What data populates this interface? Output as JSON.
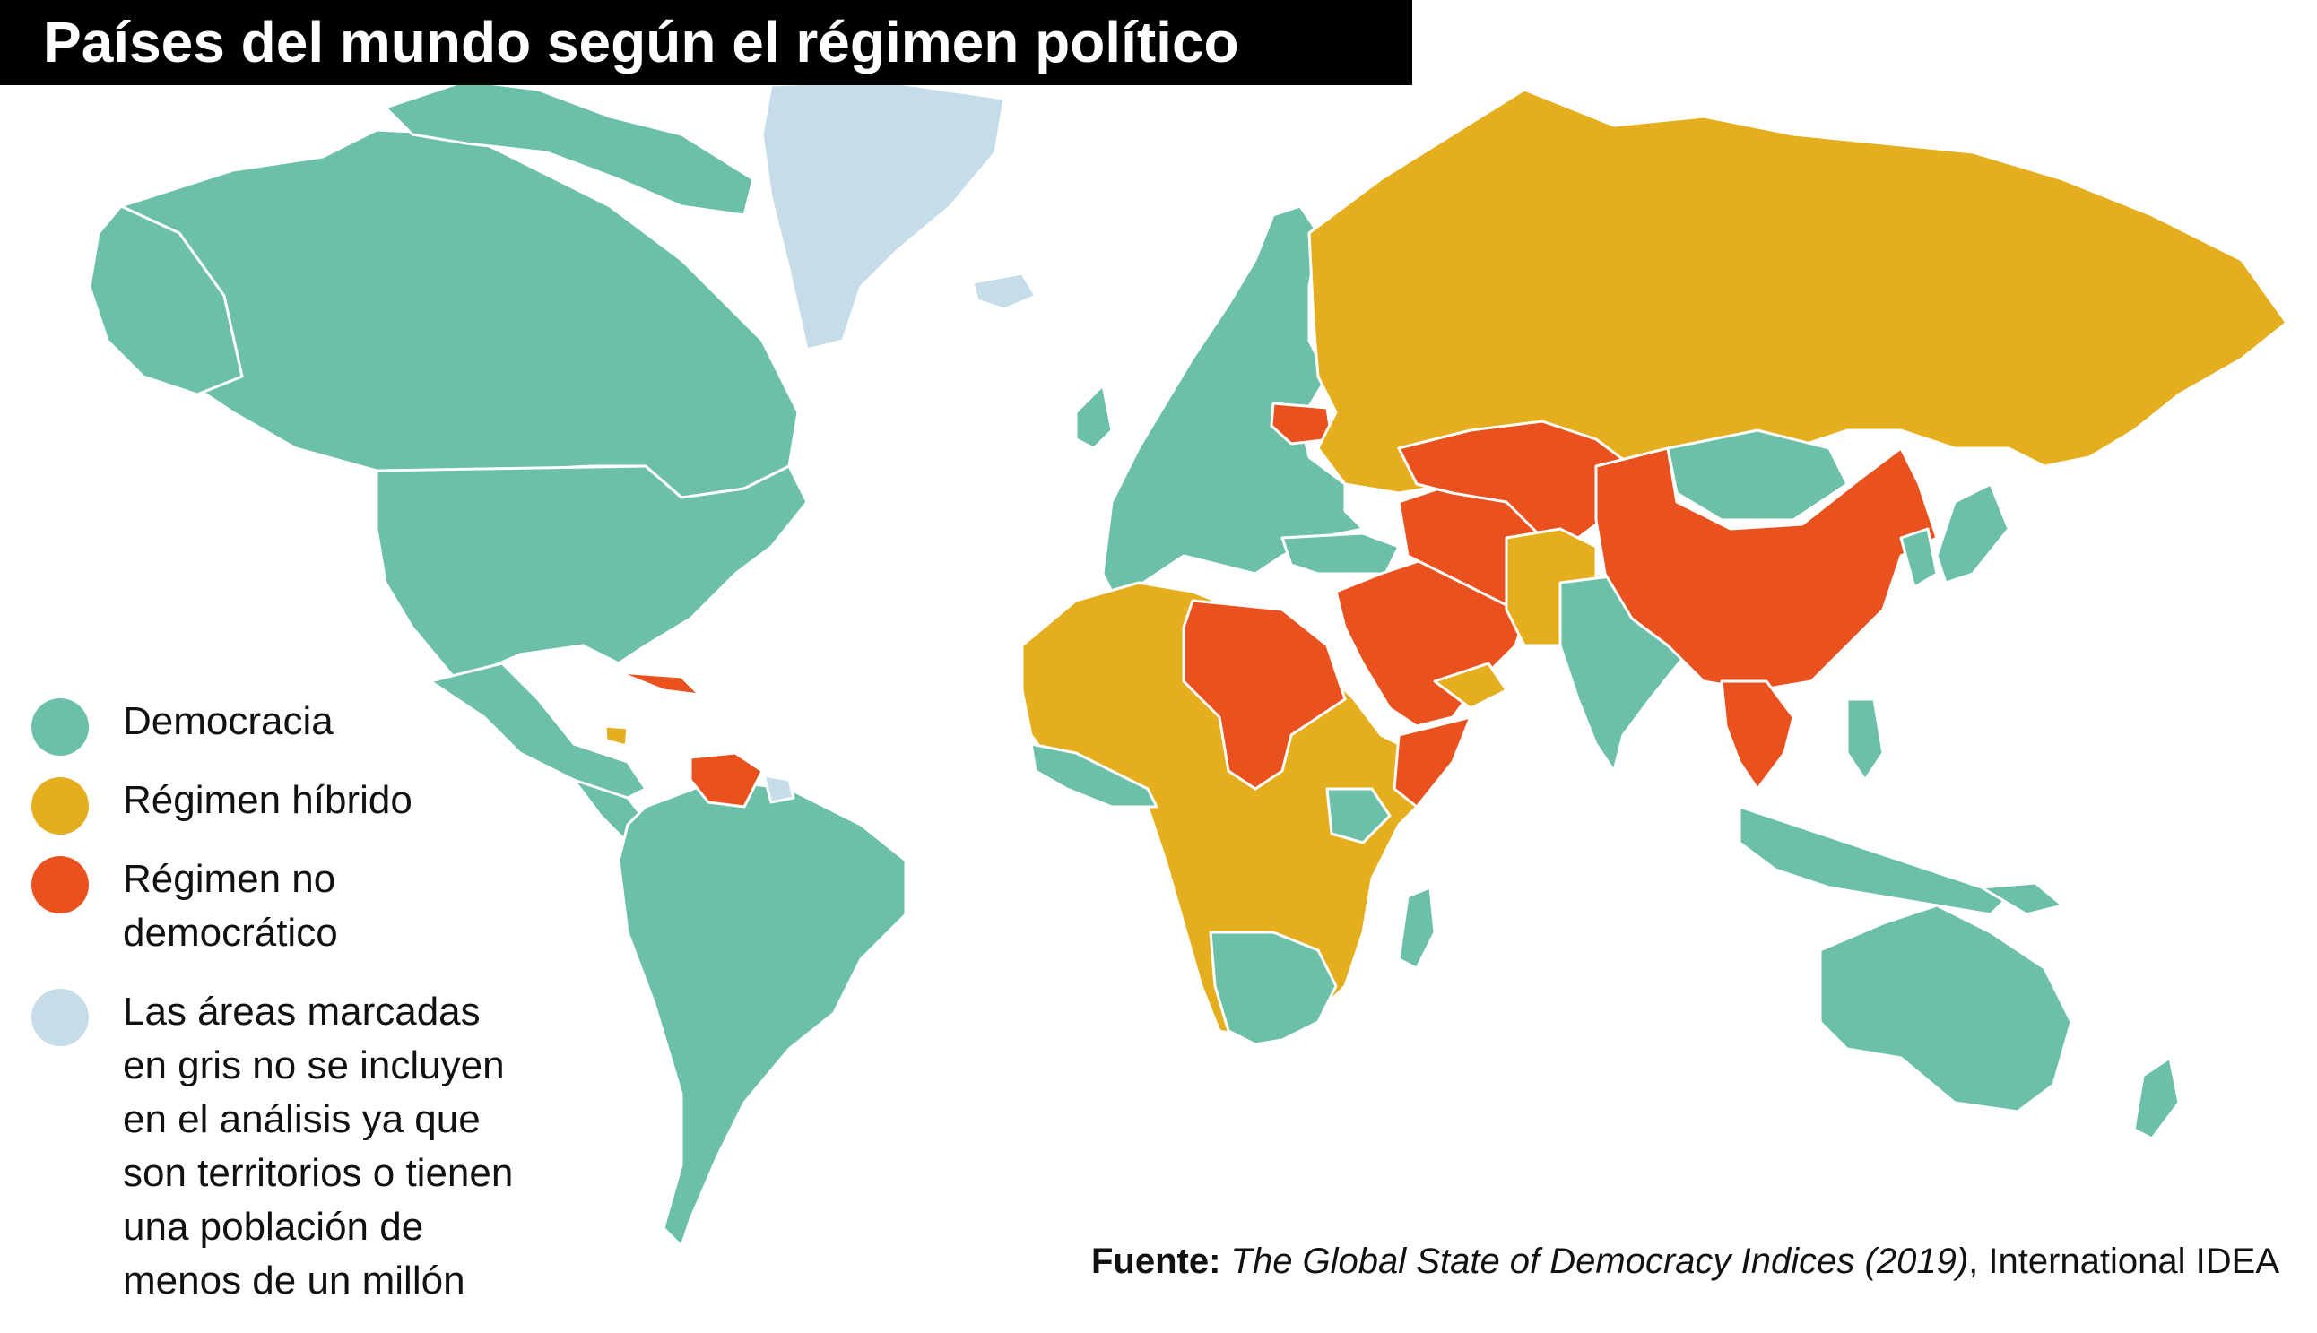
{
  "title": "Países del mundo según el régimen político",
  "legend": [
    {
      "label": "Democracia",
      "color": "#6cc0aa",
      "icon": "circle"
    },
    {
      "label": "Régimen híbrido",
      "color": "#e5ae1e",
      "icon": "circle"
    },
    {
      "label": "Régimen no\ndemocrático",
      "color": "#e9511f",
      "icon": "circle"
    },
    {
      "label": "Las áreas marcadas\nen gris no se incluyen\nen el análisis ya que\nson territorios o tienen\nuna población de\nmenos de un millón",
      "color": "#c5dde9",
      "icon": "circle"
    }
  ],
  "source": {
    "label": "Fuente:",
    "work": "The Global State of Democracy Indices (2019)",
    "publisher": ", International IDEA"
  },
  "colors": {
    "democracia": "#6cc0aa",
    "hibrido": "#e5ae1e",
    "no_democratico": "#e9511f",
    "no_incluido": "#c5dde9",
    "borders": "#ffffff",
    "title_bg": "#000000",
    "title_text": "#ffffff"
  }
}
